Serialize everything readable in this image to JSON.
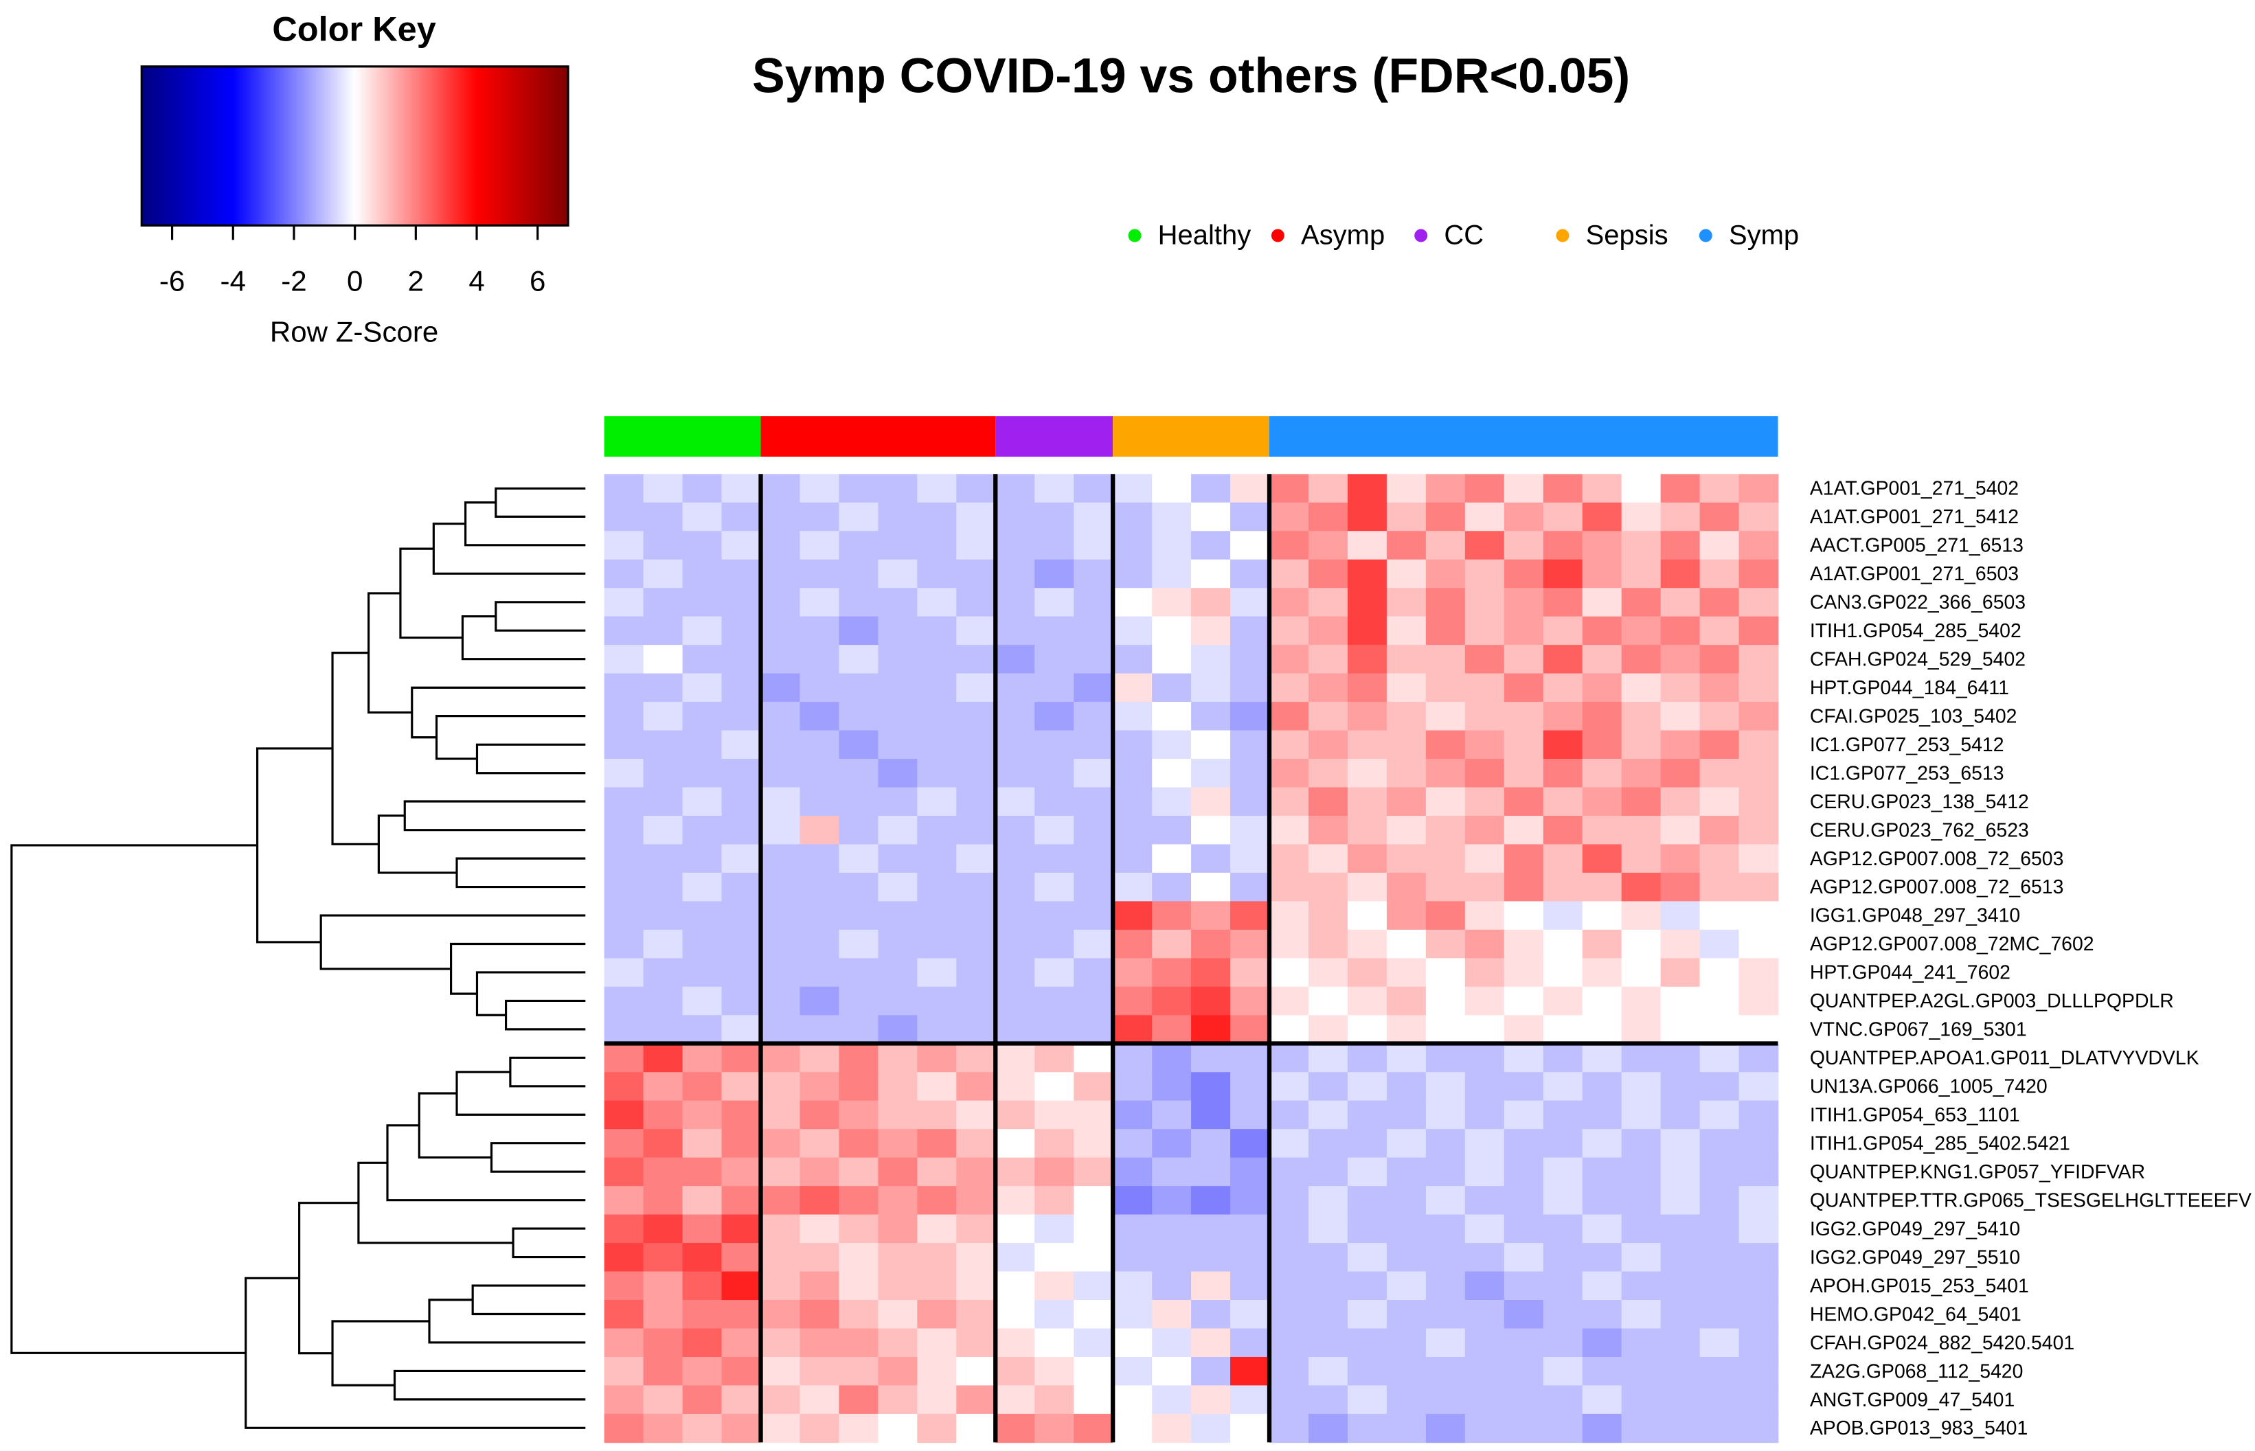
{
  "chart_data": {
    "type": "heatmap",
    "title": "Symp COVID-19 vs others (FDR<0.05)",
    "legend": [
      {
        "name": "Healthy",
        "color": "#00ee00"
      },
      {
        "name": "Asymp",
        "color": "#ff0000"
      },
      {
        "name": "CC",
        "color": "#a020f0"
      },
      {
        "name": "Sepsis",
        "color": "#ffa500"
      },
      {
        "name": "Symp",
        "color": "#1e90ff"
      }
    ],
    "column_groups": [
      "Healthy",
      "Healthy",
      "Healthy",
      "Healthy",
      "Asymp",
      "Asymp",
      "Asymp",
      "Asymp",
      "Asymp",
      "Asymp",
      "CC",
      "CC",
      "CC",
      "Sepsis",
      "Sepsis",
      "Sepsis",
      "Sepsis",
      "Symp",
      "Symp",
      "Symp",
      "Symp",
      "Symp",
      "Symp",
      "Symp",
      "Symp",
      "Symp",
      "Symp",
      "Symp",
      "Symp",
      "Symp"
    ],
    "rows": [
      "A1AT.GP001_271_5402",
      "A1AT.GP001_271_5412",
      "AACT.GP005_271_6513",
      "A1AT.GP001_271_6503",
      "CAN3.GP022_366_6503",
      "ITIH1.GP054_285_5402",
      "CFAH.GP024_529_5402",
      "HPT.GP044_184_6411",
      "CFAI.GP025_103_5402",
      "IC1.GP077_253_5412",
      "IC1.GP077_253_6513",
      "CERU.GP023_138_5412",
      "CERU.GP023_762_6523",
      "AGP12.GP007.008_72_6503",
      "AGP12.GP007.008_72_6513",
      "IGG1.GP048_297_3410",
      "AGP12.GP007.008_72MC_7602",
      "HPT.GP044_241_7602",
      "QUANTPEP.A2GL.GP003_DLLLPQPDLR",
      "VTNC.GP067_169_5301",
      "QUANTPEP.APOA1.GP011_DLATVYVDVLK",
      "UN13A.GP066_1005_7420",
      "ITIH1.GP054_653_1101",
      "ITIH1.GP054_285_5402.5421",
      "QUANTPEP.KNG1.GP057_YFIDFVAR",
      "QUANTPEP.TTR.GP065_TSESGELHGLTTEEEFV",
      "IGG2.GP049_297_5410",
      "IGG2.GP049_297_5510",
      "APOH.GP015_253_5401",
      "HEMO.GP042_64_5401",
      "CFAH.GP024_882_5420.5401",
      "ZA2G.GP068_112_5420",
      "ANGT.GP009_47_5401",
      "APOB.GP013_983_5401"
    ],
    "values": [
      [
        -1,
        -0.5,
        -1,
        -0.5,
        -1,
        -0.5,
        -1,
        -1,
        -0.5,
        -1,
        -1,
        -0.5,
        -1,
        -0.5,
        0,
        -1,
        0.5,
        2,
        1,
        3,
        0.5,
        1.5,
        2,
        0.5,
        2,
        1,
        0,
        2,
        1,
        1.5
      ],
      [
        -1,
        -1,
        -0.5,
        -1,
        -1,
        -1,
        -0.5,
        -1,
        -1,
        -0.5,
        -1,
        -1,
        -0.5,
        -1,
        -0.5,
        0,
        -1,
        1.5,
        2,
        3,
        1,
        2,
        0.5,
        1.5,
        1,
        2.5,
        0.5,
        1,
        2,
        1
      ],
      [
        -0.5,
        -1,
        -1,
        -0.5,
        -1,
        -0.5,
        -1,
        -1,
        -1,
        -0.5,
        -1,
        -1,
        -0.5,
        -1,
        -0.5,
        -1,
        0,
        2,
        1.5,
        0.5,
        2,
        1,
        2.5,
        1,
        2,
        1.5,
        1,
        2,
        0.5,
        1.5
      ],
      [
        -1,
        -0.5,
        -1,
        -1,
        -1,
        -1,
        -1,
        -0.5,
        -1,
        -1,
        -1,
        -1.5,
        -1,
        -1,
        -0.5,
        0,
        -1,
        1,
        2,
        3,
        0.5,
        1.5,
        1,
        2,
        3,
        1.5,
        1,
        2.5,
        1,
        2
      ],
      [
        -0.5,
        -1,
        -1,
        -1,
        -1,
        -0.5,
        -1,
        -1,
        -0.5,
        -1,
        -1,
        -0.5,
        -1,
        0,
        0.5,
        1,
        -0.5,
        1.5,
        1,
        3,
        1,
        2,
        1,
        1.5,
        2,
        0.5,
        2,
        1,
        2,
        1
      ],
      [
        -1,
        -1,
        -0.5,
        -1,
        -1,
        -1,
        -1.5,
        -1,
        -1,
        -0.5,
        -1,
        -1,
        -1,
        -0.5,
        0,
        0.5,
        -1,
        1,
        1.5,
        3,
        0.5,
        2,
        1,
        1.5,
        1,
        2,
        1.5,
        2,
        1,
        2
      ],
      [
        -0.5,
        0,
        -1,
        -1,
        -1,
        -1,
        -0.5,
        -1,
        -1,
        -1,
        -1.5,
        -1,
        -1,
        -1,
        0,
        -0.5,
        -1,
        1.5,
        1,
        2.5,
        1,
        1,
        2,
        1,
        2.5,
        1,
        2,
        1.5,
        2,
        1
      ],
      [
        -1,
        -1,
        -0.5,
        -1,
        -1.5,
        -1,
        -1,
        -1,
        -1,
        -0.5,
        -1,
        -1,
        -1.5,
        0.5,
        -1,
        -0.5,
        -1,
        1,
        1.5,
        2,
        0.5,
        1,
        1,
        2,
        1,
        1.5,
        0.5,
        1,
        1.5,
        1
      ],
      [
        -1,
        -0.5,
        -1,
        -1,
        -1,
        -1.5,
        -1,
        -1,
        -1,
        -1,
        -1,
        -1.5,
        -1,
        -0.5,
        0,
        -1,
        -1.5,
        2,
        1,
        1.5,
        1,
        0.5,
        1,
        1,
        1.5,
        2,
        1,
        0.5,
        1,
        1.5
      ],
      [
        -1,
        -1,
        -1,
        -0.5,
        -1,
        -1,
        -1.5,
        -1,
        -1,
        -1,
        -1,
        -1,
        -1,
        -1,
        -0.5,
        0,
        -1,
        1,
        1.5,
        1,
        1,
        2,
        1.5,
        1,
        3,
        2,
        1,
        1.5,
        2,
        1
      ],
      [
        -0.5,
        -1,
        -1,
        -1,
        -1,
        -1,
        -1,
        -1.5,
        -1,
        -1,
        -1,
        -1,
        -0.5,
        -1,
        0,
        -0.5,
        -1,
        1.5,
        1,
        0.5,
        1,
        1.5,
        2,
        1,
        2,
        1,
        1.5,
        2,
        1,
        1
      ],
      [
        -1,
        -1,
        -0.5,
        -1,
        -0.5,
        -1,
        -1,
        -1,
        -0.5,
        -1,
        -0.5,
        -1,
        -1,
        -1,
        -0.5,
        0.5,
        -1,
        1,
        2,
        1,
        1.5,
        0.5,
        1,
        2,
        1,
        1.5,
        2,
        1,
        0.5,
        1
      ],
      [
        -1,
        -0.5,
        -1,
        -1,
        -0.5,
        1,
        -1,
        -0.5,
        -1,
        -1,
        -1,
        -0.5,
        -1,
        -1,
        -1,
        0,
        -0.5,
        0.5,
        1.5,
        1,
        0.5,
        1,
        1.5,
        0.5,
        2,
        1,
        1,
        0.5,
        1.5,
        1
      ],
      [
        -1,
        -1,
        -1,
        -0.5,
        -1,
        -1,
        -0.5,
        -1,
        -1,
        -0.5,
        -1,
        -1,
        -1,
        -1,
        0,
        -1,
        -0.5,
        1,
        0.5,
        1.5,
        1,
        1,
        0.5,
        2,
        1,
        2.5,
        1,
        1.5,
        1,
        0.5
      ],
      [
        -1,
        -1,
        -0.5,
        -1,
        -1,
        -1,
        -1,
        -0.5,
        -1,
        -1,
        -1,
        -0.5,
        -1,
        -0.5,
        -1,
        0,
        -1,
        1,
        1,
        0.5,
        1.5,
        1,
        1,
        2,
        1,
        1,
        2.5,
        2,
        1,
        1
      ],
      [
        -1,
        -1,
        -1,
        -1,
        -1,
        -1,
        -1,
        -1,
        -1,
        -1,
        -1,
        -1,
        -1,
        3,
        2,
        1.5,
        2.5,
        0.5,
        1,
        0,
        1.5,
        2,
        0.5,
        0,
        -0.5,
        0,
        0.5,
        -0.5,
        0,
        0
      ],
      [
        -1,
        -0.5,
        -1,
        -1,
        -1,
        -1,
        -0.5,
        -1,
        -1,
        -1,
        -1,
        -1,
        -0.5,
        2,
        1,
        2,
        1.5,
        0.5,
        1,
        0.5,
        0,
        1,
        1.5,
        0.5,
        0,
        1,
        0,
        0.5,
        -0.5,
        0
      ],
      [
        -0.5,
        -1,
        -1,
        -1,
        -1,
        -1,
        -1,
        -1,
        -0.5,
        -1,
        -1,
        -0.5,
        -1,
        1.5,
        2,
        2.5,
        1,
        0,
        0.5,
        1,
        0.5,
        0,
        1,
        0.5,
        0,
        0.5,
        0,
        1,
        0,
        0.5
      ],
      [
        -1,
        -1,
        -0.5,
        -1,
        -1,
        -1.5,
        -1,
        -1,
        -1,
        -1,
        -1,
        -1,
        -1,
        2,
        2.5,
        3,
        1.5,
        0.5,
        0,
        0.5,
        1,
        0,
        0.5,
        0,
        0.5,
        0,
        0.5,
        0,
        0,
        0.5
      ],
      [
        -1,
        -1,
        -1,
        -0.5,
        -1,
        -1,
        -1,
        -1.5,
        -1,
        -1,
        -1,
        -1,
        -1,
        3,
        2,
        3.5,
        2,
        0,
        0.5,
        0,
        0.5,
        0,
        0,
        0.5,
        0,
        0,
        0.5,
        0,
        0,
        0
      ],
      [
        2,
        3,
        1.5,
        2,
        1.5,
        1,
        2,
        1,
        1.5,
        1,
        0.5,
        1,
        0,
        -1,
        -1.5,
        -1,
        -1,
        -1,
        -0.5,
        -1,
        -0.5,
        -1,
        -1,
        -0.5,
        -1,
        -0.5,
        -1,
        -1,
        -0.5,
        -1
      ],
      [
        2.5,
        1.5,
        2,
        1,
        1,
        1.5,
        2,
        1,
        0.5,
        1.5,
        0.5,
        0,
        1,
        -1,
        -1.5,
        -2,
        -1,
        -0.5,
        -1,
        -0.5,
        -1,
        -0.5,
        -1,
        -1,
        -0.5,
        -1,
        -0.5,
        -1,
        -1,
        -0.5
      ],
      [
        3,
        2,
        1.5,
        2,
        1,
        2,
        1.5,
        1,
        1,
        0.5,
        1,
        0.5,
        0.5,
        -1.5,
        -1,
        -2,
        -1,
        -1,
        -0.5,
        -1,
        -1,
        -0.5,
        -1,
        -0.5,
        -1,
        -1,
        -0.5,
        -1,
        -0.5,
        -1
      ],
      [
        2,
        2.5,
        1,
        2,
        1.5,
        1,
        2,
        1.5,
        2,
        1,
        0,
        1,
        0.5,
        -1,
        -1.5,
        -1,
        -2,
        -0.5,
        -1,
        -1,
        -0.5,
        -1,
        -0.5,
        -1,
        -1,
        -0.5,
        -1,
        -0.5,
        -1,
        -1
      ],
      [
        2.5,
        2,
        2,
        1.5,
        1,
        1.5,
        1,
        2,
        1,
        1.5,
        1,
        1.5,
        1,
        -1.5,
        -1,
        -1,
        -1.5,
        -1,
        -1,
        -0.5,
        -1,
        -1,
        -0.5,
        -1,
        -0.5,
        -1,
        -1,
        -0.5,
        -1,
        -1
      ],
      [
        1.5,
        2,
        1,
        2,
        2,
        2.5,
        2,
        1.5,
        2,
        1.5,
        0.5,
        1,
        0,
        -2,
        -1.5,
        -2,
        -1.5,
        -1,
        -0.5,
        -1,
        -1,
        -0.5,
        -1,
        -1,
        -0.5,
        -1,
        -1,
        -0.5,
        -1,
        -0.5
      ],
      [
        2.5,
        3,
        2,
        3,
        1,
        0.5,
        1,
        1.5,
        0.5,
        1,
        0,
        -0.5,
        0,
        -1,
        -1,
        -1,
        -1,
        -1,
        -0.5,
        -1,
        -1,
        -1,
        -0.5,
        -1,
        -1,
        -0.5,
        -1,
        -1,
        -1,
        -0.5
      ],
      [
        3,
        2.5,
        3,
        2,
        1,
        1,
        0.5,
        1,
        1,
        0.5,
        -0.5,
        0,
        0,
        -1,
        -1,
        -1,
        -1,
        -1,
        -1,
        -0.5,
        -1,
        -1,
        -1,
        -0.5,
        -1,
        -1,
        -0.5,
        -1,
        -1,
        -1
      ],
      [
        2,
        1.5,
        2.5,
        3.5,
        1,
        1.5,
        0.5,
        1,
        1,
        0.5,
        0,
        0.5,
        -0.5,
        -0.5,
        -1,
        0.5,
        -1,
        -1,
        -1,
        -1,
        -0.5,
        -1,
        -1.5,
        -1,
        -1,
        -0.5,
        -1,
        -1,
        -1,
        -1
      ],
      [
        2.5,
        1.5,
        2,
        2,
        1.5,
        2,
        1,
        0.5,
        1.5,
        1,
        0,
        -0.5,
        0,
        -0.5,
        0.5,
        -1,
        -0.5,
        -1,
        -1,
        -0.5,
        -1,
        -1,
        -1,
        -1.5,
        -1,
        -1,
        -0.5,
        -1,
        -1,
        -1
      ],
      [
        1.5,
        2,
        2.5,
        1.5,
        1,
        1.5,
        1.5,
        1,
        0.5,
        1,
        0.5,
        0,
        -0.5,
        0,
        -0.5,
        0.5,
        -1,
        -1,
        -1,
        -1,
        -1,
        -0.5,
        -1,
        -1,
        -1,
        -1.5,
        -1,
        -1,
        -0.5,
        -1
      ],
      [
        1,
        2,
        1.5,
        2,
        0.5,
        1,
        1,
        1.5,
        0.5,
        0,
        1,
        0.5,
        0,
        -0.5,
        0,
        -1,
        3.5,
        -1,
        -0.5,
        -1,
        -1,
        -1,
        -1,
        -1,
        -0.5,
        -1,
        -1,
        -1,
        -1,
        -1
      ],
      [
        1.5,
        1,
        2,
        1,
        1,
        0.5,
        2,
        1,
        0.5,
        1.5,
        0.5,
        1,
        0,
        0,
        -0.5,
        0.5,
        -0.5,
        -1,
        -1,
        -0.5,
        -1,
        -1,
        -1,
        -1,
        -1,
        -0.5,
        -1,
        -1,
        -1,
        -1
      ],
      [
        2,
        1.5,
        1,
        1.5,
        0.5,
        1,
        0.5,
        0,
        1,
        0,
        2,
        1.5,
        2,
        0,
        0.5,
        -0.5,
        0,
        -1,
        -1.5,
        -1,
        -1,
        -1.5,
        -1,
        -1,
        -1,
        -1.5,
        -1,
        -1,
        -1,
        -1
      ]
    ],
    "colorkey": {
      "title": "Color Key",
      "label": "Row Z-Score",
      "ticks": [
        -6,
        -4,
        -2,
        0,
        2,
        4,
        6
      ],
      "stops": [
        {
          "value": -7,
          "color": "#000080"
        },
        {
          "value": -4,
          "color": "#0000ff"
        },
        {
          "value": 0,
          "color": "#ffffff"
        },
        {
          "value": 4,
          "color": "#ff0000"
        },
        {
          "value": 7,
          "color": "#800000"
        }
      ]
    }
  }
}
